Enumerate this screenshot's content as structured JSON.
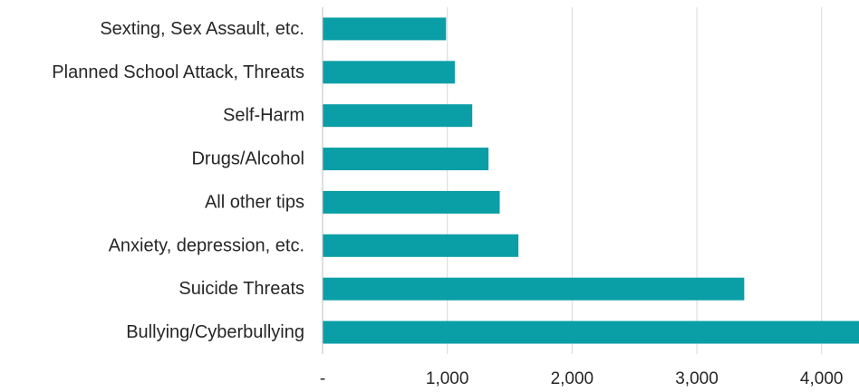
{
  "chart_data": {
    "type": "bar",
    "orientation": "horizontal",
    "categories": [
      "Sexting, Sex Assault, etc.",
      "Planned School Attack, Threats",
      "Self-Harm",
      "Drugs/Alcohol",
      "All other tips",
      "Anxiety, depression, etc.",
      "Suicide Threats",
      "Bullying/Cyberbullying"
    ],
    "values": [
      990,
      1060,
      1200,
      1330,
      1420,
      1570,
      3380,
      4300
    ],
    "xlim": [
      0,
      4300
    ],
    "xticks": [
      0,
      1000,
      2000,
      3000,
      4000
    ],
    "xtick_labels": [
      "-",
      "1,000",
      "2,000",
      "3,000",
      "4,000"
    ],
    "title": "",
    "xlabel": "",
    "ylabel": "",
    "bar_color": "#0a9ea6",
    "grid": "vertical",
    "legend": "none"
  }
}
